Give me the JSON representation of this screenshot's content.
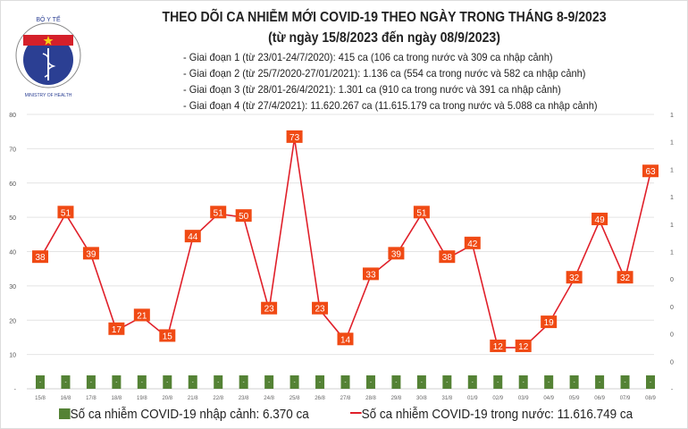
{
  "logo": {
    "text_top": "BỘ Y TẾ",
    "text_bottom": "MINISTRY OF HEALTH",
    "colors": {
      "blue": "#2b3f93",
      "red": "#d4202a",
      "star": "#f7d117"
    }
  },
  "header": {
    "title": "THEO DÕI CA NHIỄM MỚI COVID-19 THEO NGÀY TRONG THÁNG 8-9/2023",
    "subtitle": "(từ ngày 15/8/2023 đến ngày 08/9/2023)",
    "notes": [
      "- Giai đoạn 1 (từ 23/01-24/7/2020): 415 ca (106 ca trong nước và 309 ca nhập cảnh)",
      "- Giai đoạn 2 (từ 25/7/2020-27/01/2021): 1.136 ca (554 ca trong nước và 582 ca nhập cảnh)",
      "- Giai đoạn 3 (từ 28/01-26/4/2021): 1.301 ca (910 ca trong nước và 391 ca nhập cảnh)",
      "- Giai đoạn 4 (từ 27/4/2021): 11.620.267 ca (11.615.179 ca trong nước và 5.088 ca nhập cảnh)"
    ]
  },
  "chart_data": {
    "type": "bar+line",
    "categories": [
      "15/8",
      "16/8",
      "17/8",
      "18/8",
      "19/8",
      "20/8",
      "21/8",
      "22/8",
      "23/8",
      "24/8",
      "25/8",
      "26/8",
      "27/8",
      "28/8",
      "29/8",
      "30/8",
      "31/8",
      "01/9",
      "02/9",
      "03/9",
      "04/9",
      "05/9",
      "06/9",
      "07/9",
      "08/9"
    ],
    "series": [
      {
        "name": "Số ca nhiễm COVID-19 nhập cảnh: 6.370 ca",
        "type": "bar",
        "axis": "right",
        "color": "#548235",
        "values": [
          0,
          0,
          0,
          0,
          0,
          0,
          0,
          0,
          0,
          0,
          0,
          0,
          0,
          0,
          0,
          0,
          0,
          0,
          0,
          0,
          0,
          0,
          0,
          0,
          0
        ],
        "data_label": "-"
      },
      {
        "name": "Số ca nhiễm COVID-19 trong nước: 11.616.749 ca",
        "type": "line",
        "axis": "left",
        "color": "#e0202a",
        "label_bg": "#f04a14",
        "values": [
          38,
          51,
          39,
          17,
          21,
          15,
          44,
          51,
          50,
          23,
          73,
          23,
          14,
          33,
          39,
          51,
          38,
          42,
          12,
          12,
          19,
          32,
          49,
          32,
          63
        ]
      }
    ],
    "left_axis": {
      "ylim": [
        0,
        80
      ],
      "ticks": [
        "-",
        "10",
        "20",
        "30",
        "40",
        "50",
        "60",
        "70",
        "80"
      ]
    },
    "right_axis": {
      "ylim": [
        0,
        1
      ],
      "ticks": [
        "-",
        "0",
        "0",
        "0",
        "0",
        "1",
        "1",
        "1",
        "1",
        "1",
        "1"
      ]
    },
    "grid": true,
    "legend": "bottom"
  }
}
